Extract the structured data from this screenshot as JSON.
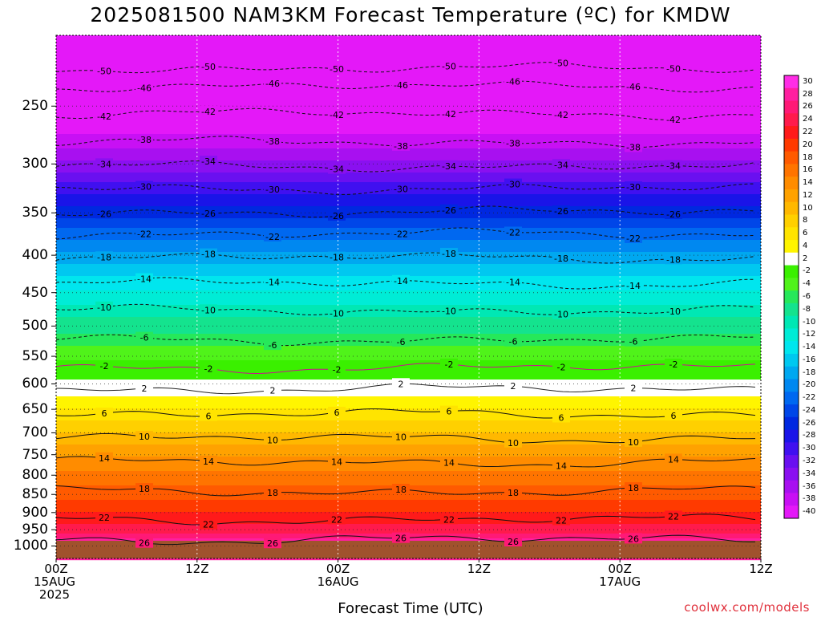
{
  "title": "2025081500 NAM3KM Forecast Temperature (ºC) for KMDW",
  "credit": "coolwx.com/models",
  "chart_data": {
    "type": "heatmap",
    "title": "2025081500 NAM3KM Forecast Temperature (ºC) for KMDW",
    "xlabel": "Forecast Time (UTC)",
    "ylabel": "",
    "x_ticks": [
      {
        "hour": 0,
        "lines": [
          "00Z",
          "15AUG",
          "2025"
        ]
      },
      {
        "hour": 12,
        "lines": [
          "12Z"
        ]
      },
      {
        "hour": 24,
        "lines": [
          "00Z",
          "16AUG"
        ]
      },
      {
        "hour": 36,
        "lines": [
          "12Z"
        ]
      },
      {
        "hour": 48,
        "lines": [
          "00Z",
          "17AUG"
        ]
      },
      {
        "hour": 60,
        "lines": [
          "12Z"
        ]
      }
    ],
    "x_range_hours": [
      0,
      60
    ],
    "y_scale": "log-pressure (hPa), inverted",
    "y_ticks": [
      250,
      300,
      350,
      400,
      450,
      500,
      550,
      600,
      650,
      700,
      750,
      800,
      850,
      900,
      950,
      1000
    ],
    "y_range_hpa": [
      1040,
      200
    ],
    "surface_hpa": 995,
    "colorbar_values": [
      30,
      28,
      26,
      24,
      22,
      20,
      18,
      16,
      14,
      12,
      10,
      8,
      6,
      4,
      2,
      -2,
      -4,
      -6,
      -8,
      -10,
      -12,
      -14,
      -16,
      -18,
      -20,
      -22,
      -24,
      -26,
      -28,
      -30,
      -32,
      -34,
      -36,
      -38,
      -40
    ],
    "colorbar_colors": [
      "#ff2de6",
      "#ff1fa0",
      "#ff1976",
      "#ff1a4c",
      "#ff1a1a",
      "#ff3a00",
      "#ff5a00",
      "#ff7400",
      "#ff8c00",
      "#ffa200",
      "#ffb800",
      "#ffd000",
      "#ffe400",
      "#fff500",
      "#ffffff",
      "#3af000",
      "#50f31a",
      "#26e85a",
      "#14e38e",
      "#00e8b4",
      "#00ecd6",
      "#00e6ee",
      "#00c8f0",
      "#00a8f0",
      "#0088f0",
      "#0068f0",
      "#0046e8",
      "#0028e0",
      "#1a14e8",
      "#4010f0",
      "#6a10f0",
      "#8a10f0",
      "#a810f0",
      "#c810f4",
      "#e418f8"
    ],
    "isotherms": [
      {
        "value": -50,
        "pressure_hpa": 222
      },
      {
        "value": -46,
        "pressure_hpa": 235
      },
      {
        "value": -42,
        "pressure_hpa": 256
      },
      {
        "value": -38,
        "pressure_hpa": 280
      },
      {
        "value": -34,
        "pressure_hpa": 302
      },
      {
        "value": -30,
        "pressure_hpa": 324
      },
      {
        "value": -26,
        "pressure_hpa": 349
      },
      {
        "value": -22,
        "pressure_hpa": 374
      },
      {
        "value": -18,
        "pressure_hpa": 403
      },
      {
        "value": -14,
        "pressure_hpa": 437
      },
      {
        "value": -10,
        "pressure_hpa": 476
      },
      {
        "value": -6,
        "pressure_hpa": 522
      },
      {
        "value": -2,
        "pressure_hpa": 570
      },
      {
        "value": 2,
        "pressure_hpa": 610
      },
      {
        "value": 6,
        "pressure_hpa": 660
      },
      {
        "value": 10,
        "pressure_hpa": 712
      },
      {
        "value": 14,
        "pressure_hpa": 768
      },
      {
        "value": 18,
        "pressure_hpa": 842
      },
      {
        "value": 22,
        "pressure_hpa": 920
      },
      {
        "value": 26,
        "pressure_hpa": 980
      }
    ]
  }
}
